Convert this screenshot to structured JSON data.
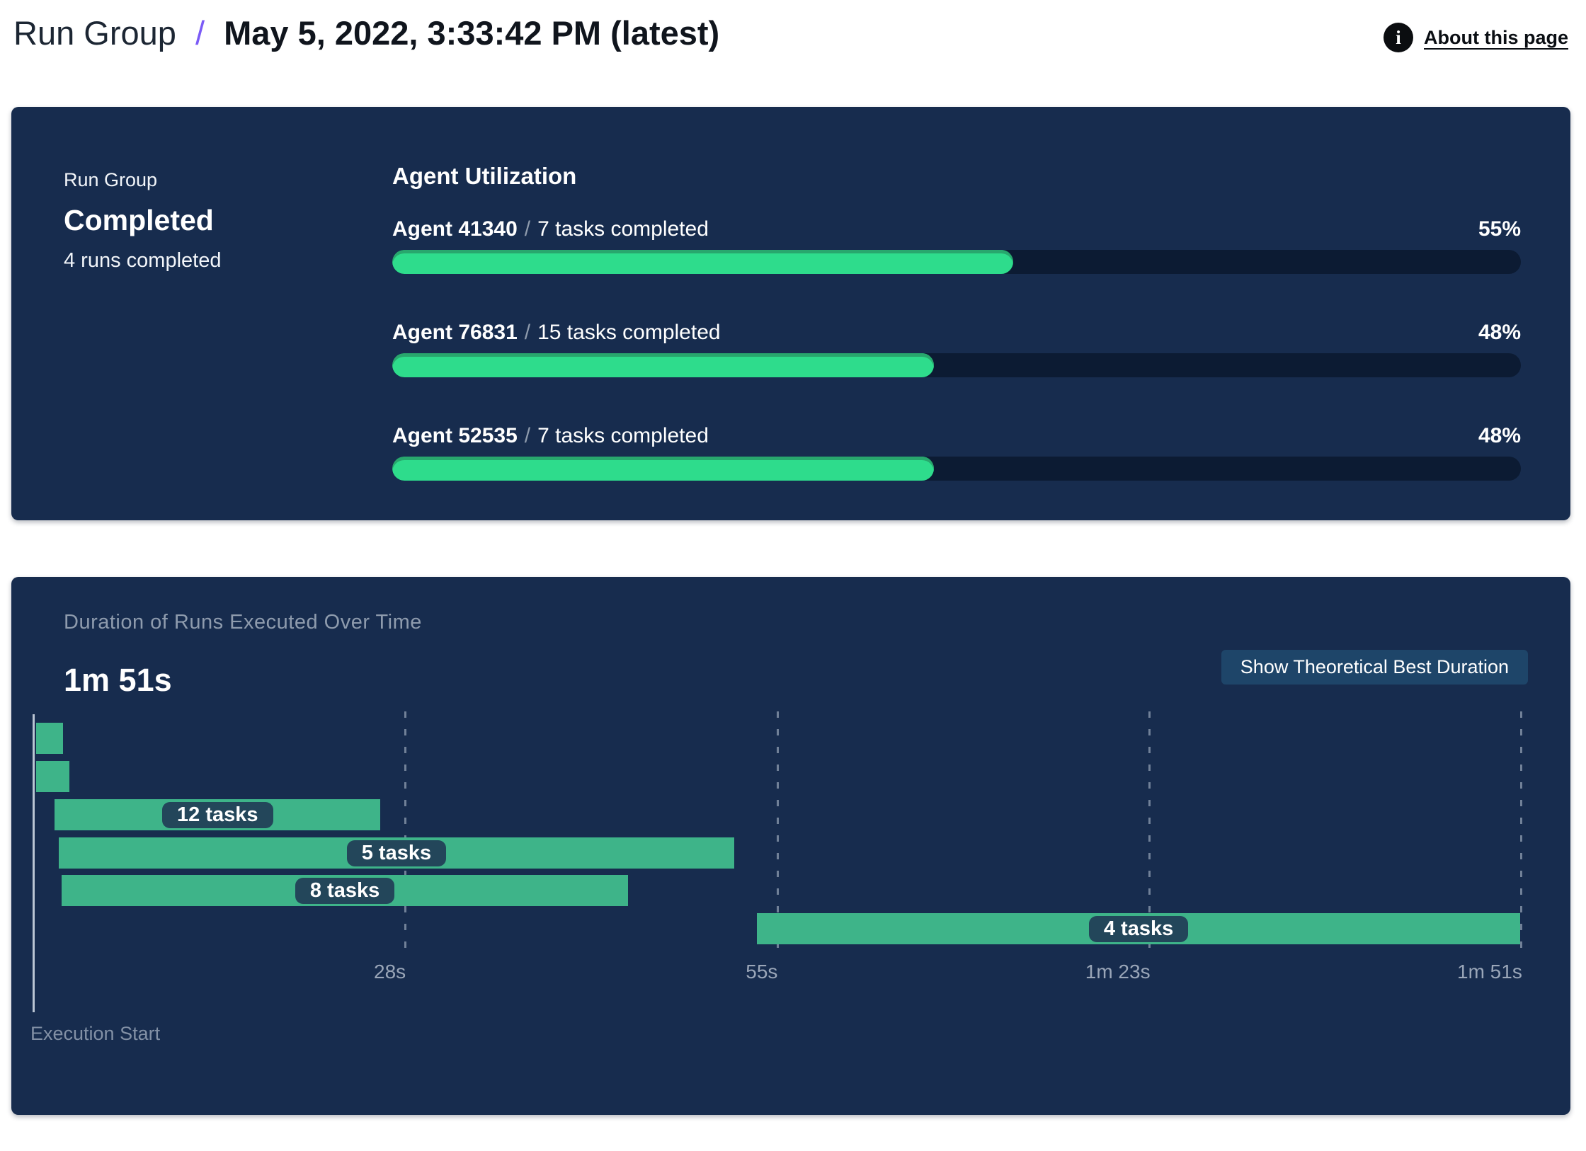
{
  "header": {
    "breadcrumb": "Run Group",
    "separator": "/",
    "title": "May 5, 2022, 3:33:42 PM (latest)",
    "info_icon": "i",
    "about_link": "About this page"
  },
  "status_card": {
    "eyebrow": "Run Group",
    "status": "Completed",
    "subtext": "4 runs completed"
  },
  "utilization": {
    "title": "Agent Utilization",
    "separator": "/",
    "rows": [
      {
        "agent": "Agent 41340",
        "tasks": "7 tasks completed",
        "percent": 55,
        "percent_label": "55%"
      },
      {
        "agent": "Agent 76831",
        "tasks": "15 tasks completed",
        "percent": 48,
        "percent_label": "48%"
      },
      {
        "agent": "Agent 52535",
        "tasks": "7 tasks completed",
        "percent": 48,
        "percent_label": "48%"
      }
    ]
  },
  "duration_card": {
    "title": "Duration of Runs Executed Over Time",
    "total_label": "1m 51s",
    "button_label": "Show Theoretical Best Duration",
    "axis_label": "Execution Start"
  },
  "chart_data": [
    {
      "type": "bar",
      "title": "Agent Utilization",
      "categories": [
        "Agent 41340",
        "Agent 76831",
        "Agent 52535"
      ],
      "values": [
        55,
        48,
        48
      ],
      "unit": "%",
      "annotations": [
        "7 tasks completed",
        "15 tasks completed",
        "7 tasks completed"
      ],
      "xlim": [
        0,
        100
      ]
    },
    {
      "type": "gantt",
      "title": "Duration of Runs Executed Over Time",
      "total_label": "1m 51s",
      "total_seconds": 111,
      "xlabel": "Execution Start",
      "x_ticks": [
        {
          "label": "28s",
          "t": 27.75
        },
        {
          "label": "55s",
          "t": 55.5
        },
        {
          "label": "1m 23s",
          "t": 83.25
        },
        {
          "label": "1m 51s",
          "t": 111
        }
      ],
      "bars": [
        {
          "start": 0.2,
          "end": 2.2,
          "label": ""
        },
        {
          "start": 0.2,
          "end": 2.7,
          "label": ""
        },
        {
          "start": 1.6,
          "end": 25.9,
          "label": "12 tasks"
        },
        {
          "start": 1.9,
          "end": 52.3,
          "label": "5 tasks"
        },
        {
          "start": 2.1,
          "end": 44.4,
          "label": "8 tasks"
        },
        {
          "start": 54.0,
          "end": 110.95,
          "label": "4 tasks"
        }
      ]
    }
  ],
  "colors": {
    "card_bg": "#172c4e",
    "progress_track": "#0c1b33",
    "progress_fill": "#2edc8c",
    "progress_fill_edge": "#28a76d",
    "gantt_bar": "#3eb489",
    "badge_bg": "#23465a",
    "button_bg": "#1e4569",
    "accent_purple": "#7b5bf6"
  }
}
